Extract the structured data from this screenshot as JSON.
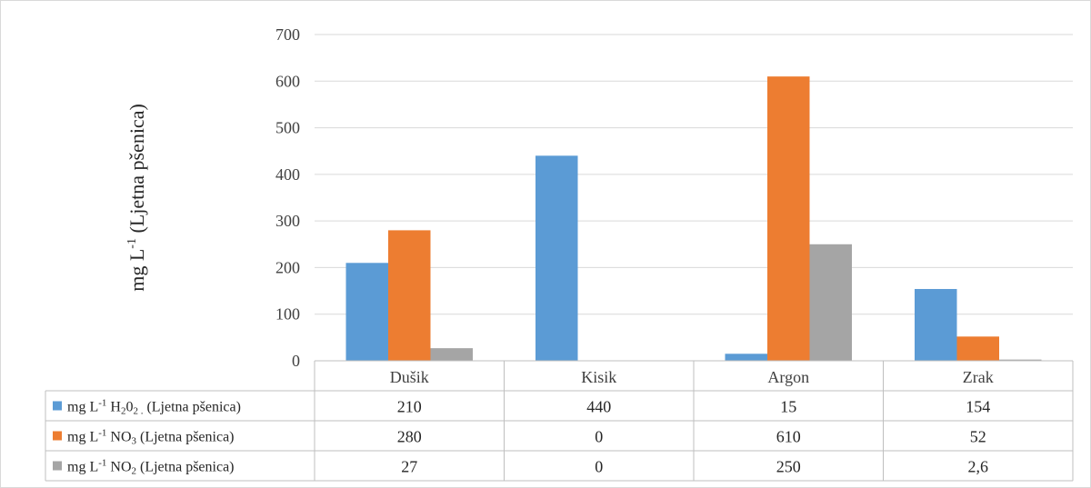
{
  "chart_data": {
    "type": "bar",
    "categories": [
      "Dušik",
      "Kisik",
      "Argon",
      "Zrak"
    ],
    "series": [
      {
        "name": "mg L⁻¹ H₂0₂ . (Ljetna pšenica)",
        "name_parts": [
          "mg L",
          "-1",
          " H",
          "2",
          "0",
          "2 .",
          " (Ljetna pšenica)"
        ],
        "values": [
          210,
          440,
          15,
          154
        ],
        "labels": [
          "210",
          "440",
          "15",
          "154"
        ],
        "color": "#5b9bd5"
      },
      {
        "name": "mg L⁻¹ NO₃ (Ljetna pšenica)",
        "name_parts": [
          "mg L",
          "-1",
          " NO",
          "3",
          " (Ljetna pšenica)"
        ],
        "values": [
          280,
          0,
          610,
          52
        ],
        "labels": [
          "280",
          "0",
          "610",
          "52"
        ],
        "color": "#ed7d31"
      },
      {
        "name": "mg L⁻¹ NO₂ (Ljetna pšenica)",
        "name_parts": [
          "mg L",
          "-1",
          " NO",
          "2",
          " (Ljetna pšenica)"
        ],
        "values": [
          27,
          0,
          250,
          2.6
        ],
        "labels": [
          "27",
          "0",
          "250",
          "2,6"
        ],
        "color": "#a5a5a5"
      }
    ],
    "ylabel": "mg L-1 (Ljetna pšenica)",
    "ylabel_parts": [
      "mg L",
      "-1",
      " (Ljetna pšenica)"
    ],
    "ylim": [
      0,
      700
    ],
    "yticks": [
      0,
      100,
      200,
      300,
      400,
      500,
      600,
      700
    ],
    "grid": true,
    "legend": "data-table"
  }
}
